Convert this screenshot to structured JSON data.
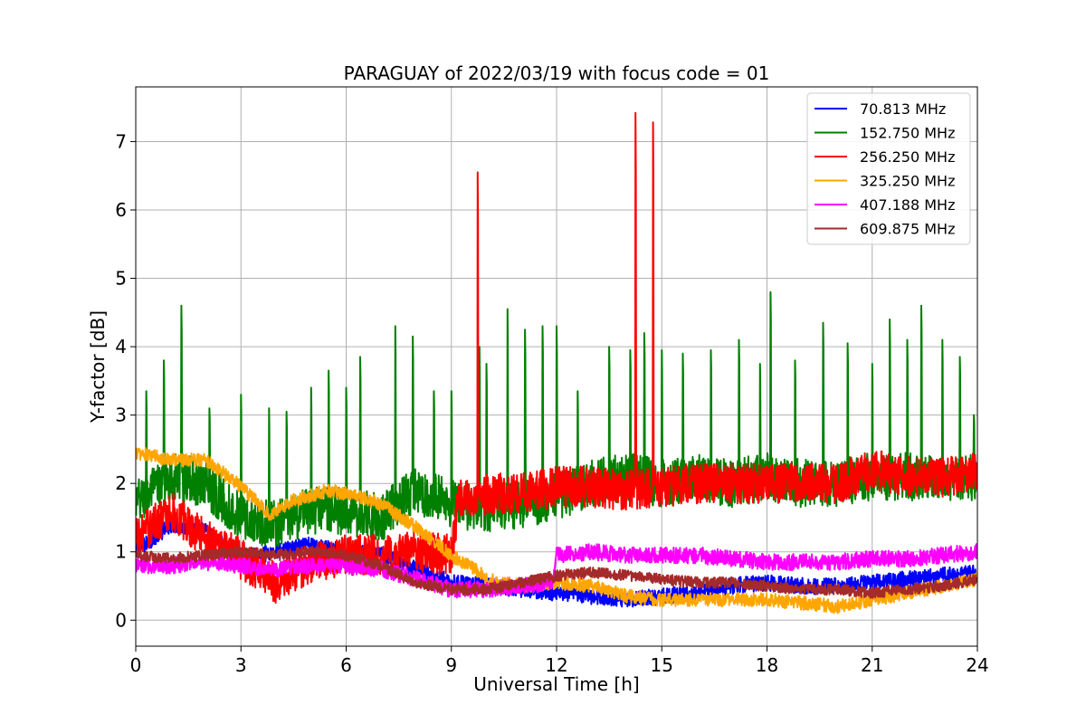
{
  "chart_data": {
    "type": "line",
    "title": "PARAGUAY of 2022/03/19 with focus code = 01",
    "xlabel": "Universal Time [h]",
    "ylabel": "Y-factor [dB]",
    "xlim": [
      0,
      24
    ],
    "ylim": [
      -0.38,
      7.8
    ],
    "xticks": [
      0,
      3,
      6,
      9,
      12,
      15,
      18,
      21,
      24
    ],
    "yticks": [
      0,
      1,
      2,
      3,
      4,
      5,
      6,
      7
    ],
    "grid": true,
    "legend_position": "top-right",
    "series": [
      {
        "name": " 70.813 MHz",
        "color": "#0000ff",
        "noise": 0.12,
        "x": [
          0,
          1,
          2,
          3,
          4,
          5,
          6,
          7,
          8,
          9,
          10,
          11,
          12,
          13,
          14,
          15,
          16,
          17,
          18,
          19,
          20,
          21,
          22,
          23,
          24
        ],
        "y": [
          1.0,
          1.4,
          1.3,
          0.9,
          1.0,
          1.1,
          1.0,
          0.95,
          0.75,
          0.55,
          0.5,
          0.45,
          0.4,
          0.35,
          0.3,
          0.35,
          0.4,
          0.5,
          0.55,
          0.5,
          0.5,
          0.55,
          0.6,
          0.65,
          0.7
        ],
        "spikes": []
      },
      {
        "name": "152.750 MHz",
        "color": "#008000",
        "noise": 0.35,
        "x": [
          0,
          1,
          2,
          3,
          4,
          5,
          6,
          7,
          8,
          9,
          10,
          11,
          12,
          13,
          14,
          15,
          16,
          17,
          18,
          19,
          20,
          21,
          22,
          23,
          24
        ],
        "y": [
          1.7,
          2.1,
          2.0,
          1.5,
          1.4,
          1.6,
          1.6,
          1.5,
          1.9,
          1.7,
          1.6,
          1.7,
          1.8,
          2.0,
          2.1,
          2.0,
          2.1,
          2.0,
          2.1,
          2.0,
          2.0,
          2.1,
          2.1,
          2.1,
          2.1
        ],
        "spikes": [
          [
            0.3,
            3.35
          ],
          [
            0.8,
            3.8
          ],
          [
            1.3,
            4.6
          ],
          [
            2.1,
            3.1
          ],
          [
            3.0,
            3.3
          ],
          [
            3.8,
            3.1
          ],
          [
            4.3,
            3.05
          ],
          [
            5.0,
            3.4
          ],
          [
            5.5,
            3.65
          ],
          [
            6.0,
            3.4
          ],
          [
            6.4,
            3.85
          ],
          [
            7.4,
            4.3
          ],
          [
            7.9,
            4.15
          ],
          [
            8.5,
            3.35
          ],
          [
            9.0,
            3.35
          ],
          [
            9.8,
            4.0
          ],
          [
            10.0,
            3.75
          ],
          [
            10.6,
            4.55
          ],
          [
            11.1,
            4.25
          ],
          [
            11.6,
            4.3
          ],
          [
            12.0,
            4.3
          ],
          [
            12.6,
            3.35
          ],
          [
            13.5,
            4.0
          ],
          [
            14.1,
            3.95
          ],
          [
            14.5,
            4.2
          ],
          [
            15.0,
            3.95
          ],
          [
            15.6,
            3.9
          ],
          [
            16.4,
            3.95
          ],
          [
            17.2,
            4.1
          ],
          [
            17.8,
            3.75
          ],
          [
            18.1,
            4.8
          ],
          [
            18.8,
            3.8
          ],
          [
            19.6,
            4.35
          ],
          [
            20.3,
            4.05
          ],
          [
            21.0,
            3.75
          ],
          [
            21.5,
            4.4
          ],
          [
            22.0,
            4.1
          ],
          [
            22.4,
            4.6
          ],
          [
            23.0,
            4.1
          ],
          [
            23.5,
            3.85
          ],
          [
            23.9,
            3.0
          ]
        ]
      },
      {
        "name": "256.250 MHz",
        "color": "#ff0000",
        "noise": 0.3,
        "x": [
          0,
          1,
          2,
          3,
          4,
          5,
          6,
          7,
          8,
          9,
          9.2,
          10,
          11,
          12,
          13,
          14,
          15,
          16,
          17,
          18,
          19,
          20,
          21,
          22,
          23,
          24
        ],
        "y": [
          1.2,
          1.6,
          1.2,
          0.9,
          0.55,
          0.85,
          0.95,
          0.95,
          1.0,
          0.95,
          1.75,
          1.85,
          1.85,
          1.95,
          1.95,
          1.9,
          1.95,
          2.0,
          2.0,
          2.0,
          2.0,
          2.0,
          2.2,
          2.1,
          2.1,
          2.15
        ],
        "spikes": [
          [
            9.75,
            6.55
          ],
          [
            14.25,
            7.42
          ],
          [
            14.75,
            7.28
          ]
        ]
      },
      {
        "name": "325.250 MHz",
        "color": "#ffa500",
        "noise": 0.1,
        "x": [
          0,
          1,
          2,
          3,
          3.8,
          4.5,
          5.5,
          6.0,
          7,
          8,
          9,
          9.8,
          10,
          11,
          12,
          13,
          14,
          15,
          16,
          17,
          18,
          19,
          20,
          21,
          22,
          23,
          24
        ],
        "y": [
          2.45,
          2.35,
          2.35,
          1.95,
          1.55,
          1.75,
          1.9,
          1.85,
          1.7,
          1.35,
          0.95,
          0.7,
          0.6,
          0.5,
          0.55,
          0.5,
          0.35,
          0.3,
          0.3,
          0.3,
          0.3,
          0.25,
          0.2,
          0.3,
          0.4,
          0.5,
          0.6
        ],
        "spikes": []
      },
      {
        "name": "407.188 MHz",
        "color": "#ff00ff",
        "noise": 0.12,
        "x": [
          0,
          1,
          2,
          3,
          4,
          5,
          6,
          7,
          8,
          9,
          10,
          11,
          11.9,
          12,
          13,
          14,
          15,
          16,
          17,
          18,
          19,
          20,
          21,
          22,
          23,
          24
        ],
        "y": [
          0.8,
          0.8,
          0.85,
          0.8,
          0.75,
          0.8,
          0.8,
          0.75,
          0.6,
          0.45,
          0.45,
          0.5,
          0.55,
          0.95,
          1.0,
          0.95,
          0.95,
          0.95,
          0.9,
          0.85,
          0.85,
          0.85,
          0.9,
          0.9,
          0.95,
          1.0
        ],
        "spikes": []
      },
      {
        "name": "609.875 MHz",
        "color": "#a52a2a",
        "noise": 0.08,
        "x": [
          0,
          1,
          2,
          3,
          4,
          5,
          6,
          7,
          8,
          9,
          10,
          11,
          12,
          13,
          14,
          15,
          16,
          17,
          18,
          19,
          20,
          21,
          22,
          23,
          24
        ],
        "y": [
          0.95,
          0.9,
          0.95,
          1.0,
          0.95,
          1.0,
          0.95,
          0.8,
          0.55,
          0.45,
          0.45,
          0.55,
          0.65,
          0.7,
          0.65,
          0.6,
          0.55,
          0.55,
          0.5,
          0.45,
          0.45,
          0.4,
          0.45,
          0.5,
          0.6
        ],
        "spikes": []
      }
    ]
  }
}
